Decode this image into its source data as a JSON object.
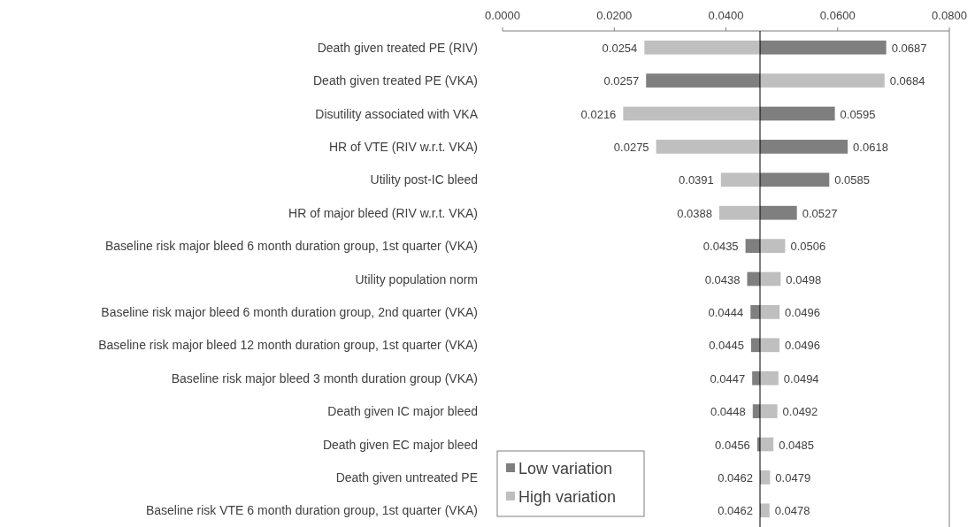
{
  "chart_data": {
    "type": "bar",
    "orientation": "horizontal",
    "categories": [
      "Death given treated PE (RIV)",
      "Death given treated PE (VKA)",
      "Disutility associated with VKA",
      "HR of VTE (RIV w.r.t. VKA)",
      "Utility post-IC bleed",
      "HR of major bleed (RIV w.r.t. VKA)",
      "Baseline risk major bleed 6 month duration group, 1st quarter (VKA)",
      "Utility population norm",
      "Baseline risk major bleed 6 month duration group, 2nd quarter (VKA)",
      "Baseline risk major bleed 12 month duration group, 1st quarter (VKA)",
      "Baseline risk major bleed 3 month duration group (VKA)",
      "Death given IC major bleed",
      "Death given EC major bleed",
      "Death given untreated PE ",
      "Baseline risk VTE 6 month duration group, 1st quarter (VKA)"
    ],
    "series": [
      {
        "name": "Low variation",
        "color": "#7f7f7f",
        "base": [
          0.0461,
          0.0461,
          0.0461,
          0.0461,
          0.0461,
          0.0461,
          0.0461,
          0.0461,
          0.0461,
          0.0461,
          0.0461,
          0.0461,
          0.0461,
          0.0461,
          0.0461
        ],
        "values": [
          0.0226,
          -0.0204,
          0.0134,
          0.0157,
          0.0124,
          0.0066,
          -0.0026,
          -0.0023,
          -0.0017,
          -0.0016,
          -0.0014,
          -0.0013,
          -0.0005,
          0.0001,
          0.0001
        ],
        "value_labels": [
          "0.0687",
          "0.0257",
          "0.0595",
          "0.0618",
          "0.0585",
          "0.0527",
          "0.0435",
          "0.0438",
          "0.0444",
          "0.0445",
          "0.0447",
          "0.0448",
          "0.0456",
          "0.0462",
          "0.0462"
        ]
      },
      {
        "name": "High variation",
        "color": "#bfbfbf",
        "base": [
          0.0461,
          0.0461,
          0.0461,
          0.0461,
          0.0461,
          0.0461,
          0.0461,
          0.0461,
          0.0461,
          0.0461,
          0.0461,
          0.0461,
          0.0461,
          0.0461,
          0.0461
        ],
        "values": [
          -0.0207,
          0.0223,
          -0.0245,
          -0.0186,
          -0.007,
          -0.0073,
          0.0045,
          0.0037,
          0.0035,
          0.0035,
          0.0033,
          0.0031,
          0.0024,
          0.0018,
          0.0017
        ],
        "value_labels": [
          "0.0254",
          "0.0684",
          "0.0216",
          "0.0275",
          "0.0391",
          "0.0388",
          "0.0506",
          "0.0498",
          "0.0496",
          "0.0496",
          "0.0494",
          "0.0492",
          "0.0485",
          "0.0479",
          "0.0478"
        ]
      }
    ],
    "xlim": [
      0,
      0.08
    ],
    "xticks": [
      {
        "value": 0,
        "label": "0.0000"
      },
      {
        "value": 0.02,
        "label": "0.0200"
      },
      {
        "value": 0.04,
        "label": "0.0400"
      },
      {
        "value": 0.06,
        "label": "0.0600"
      },
      {
        "value": 0.08,
        "label": "0.0800"
      }
    ],
    "ref_lines": [
      {
        "axis": "x",
        "value": 0.0461,
        "color": "#000000"
      }
    ],
    "legend": "bottom left"
  }
}
